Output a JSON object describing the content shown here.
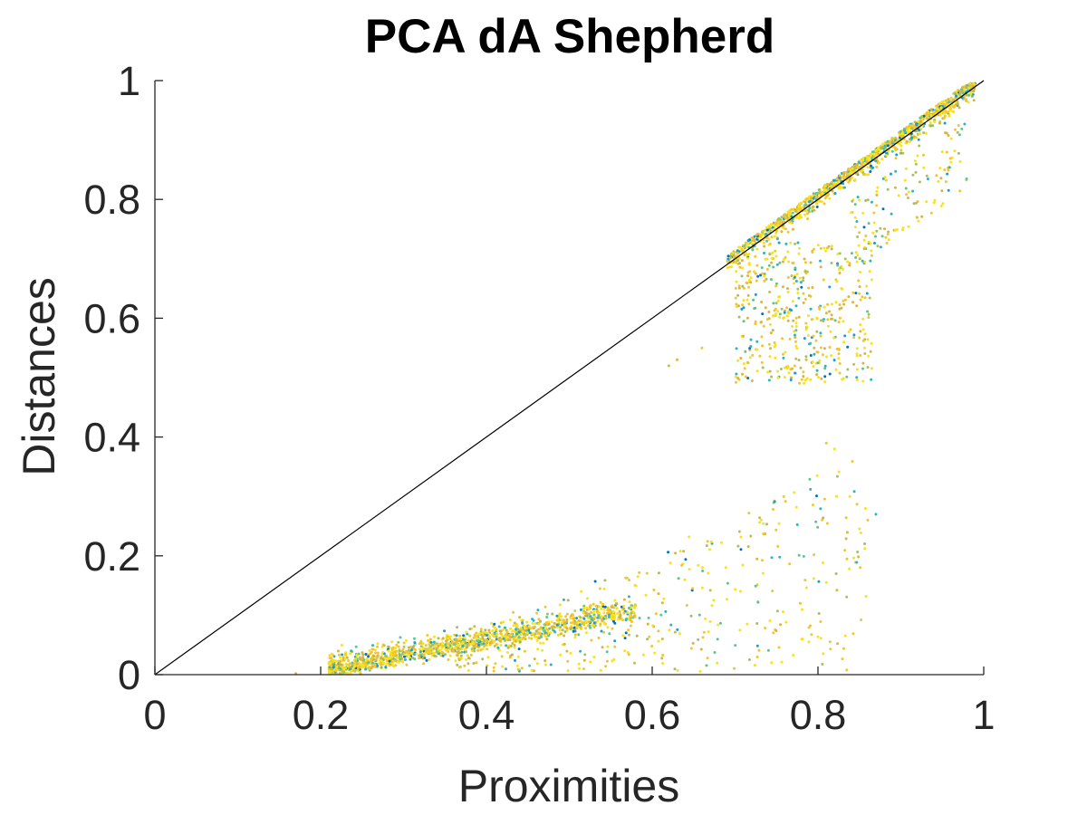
{
  "chart_data": {
    "type": "scatter",
    "title": "PCA dA Shepherd",
    "xlabel": "Proximities",
    "ylabel": "Distances",
    "xlim": [
      0,
      1
    ],
    "ylim": [
      0,
      1
    ],
    "x_ticks": [
      {
        "value": 0,
        "label": "0"
      },
      {
        "value": 0.2,
        "label": "0.2"
      },
      {
        "value": 0.4,
        "label": "0.4"
      },
      {
        "value": 0.6,
        "label": "0.6"
      },
      {
        "value": 0.8,
        "label": "0.8"
      },
      {
        "value": 1,
        "label": "1"
      }
    ],
    "y_ticks": [
      {
        "value": 0,
        "label": "0"
      },
      {
        "value": 0.2,
        "label": "0.2"
      },
      {
        "value": 0.4,
        "label": "0.4"
      },
      {
        "value": 0.6,
        "label": "0.6"
      },
      {
        "value": 0.8,
        "label": "0.8"
      },
      {
        "value": 1,
        "label": "1"
      }
    ],
    "grid": false,
    "reference_line": {
      "x": [
        0,
        1
      ],
      "y": [
        0,
        1
      ],
      "color": "#000000"
    },
    "colormap": [
      "#0072BD",
      "#1A9AD6",
      "#2CB5C0",
      "#5CC68E",
      "#A8BE62",
      "#D9B43E",
      "#F2C530",
      "#F9E21A"
    ],
    "point_count": 3400,
    "clusters": [
      {
        "name_note": "",
        "x_range": [
          0.2,
          0.6
        ],
        "y_range": [
          0.0,
          0.16
        ],
        "density": "high"
      },
      {
        "x_range": [
          0.35,
          0.85
        ],
        "y_range": [
          0.0,
          0.4
        ],
        "density": "sparse"
      },
      {
        "x_range": [
          0.68,
          1.0
        ],
        "y_range": [
          0.65,
          1.0
        ],
        "density": "high"
      },
      {
        "x_range": [
          0.7,
          0.87
        ],
        "y_range": [
          0.48,
          0.73
        ],
        "density": "medium"
      },
      {
        "x_range": [
          0.85,
          0.98
        ],
        "y_range": [
          0.72,
          0.92
        ],
        "density": "sparse"
      }
    ]
  }
}
